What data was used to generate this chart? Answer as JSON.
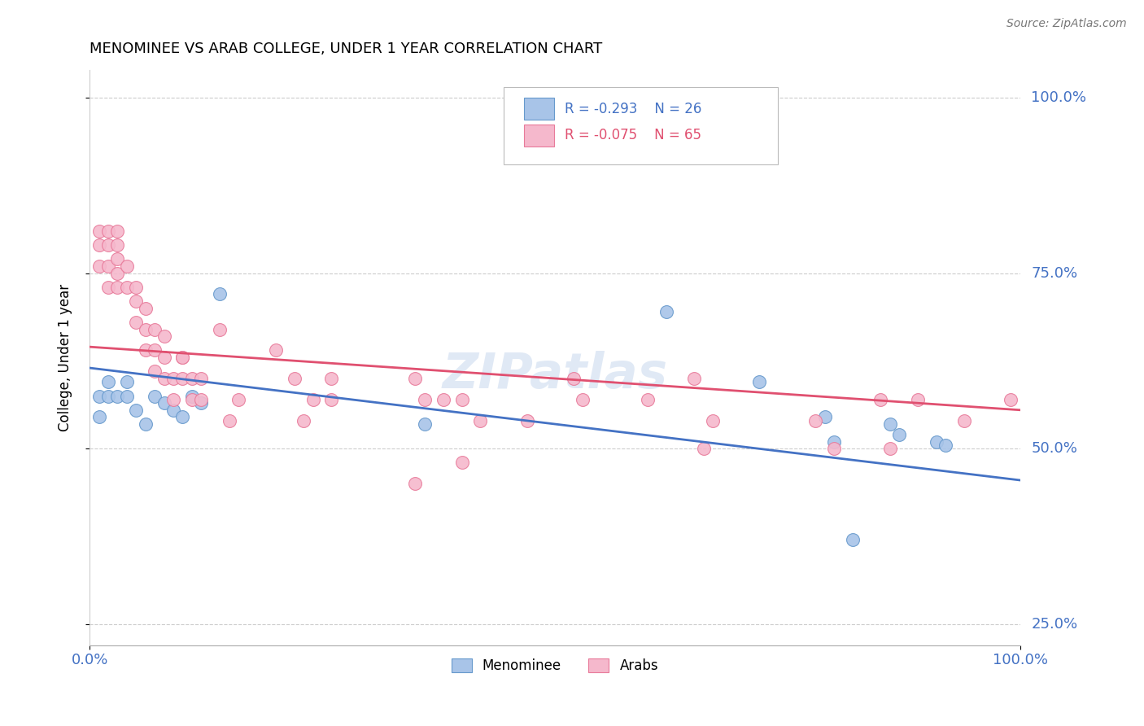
{
  "title": "MENOMINEE VS ARAB COLLEGE, UNDER 1 YEAR CORRELATION CHART",
  "source": "Source: ZipAtlas.com",
  "ylabel": "College, Under 1 year",
  "blue_label": "Menominee",
  "pink_label": "Arabs",
  "blue_R": "-0.293",
  "blue_N": "26",
  "pink_R": "-0.075",
  "pink_N": "65",
  "blue_scatter_color": "#a8c4e8",
  "blue_scatter_edge": "#6699cc",
  "pink_scatter_color": "#f5b8cc",
  "pink_scatter_edge": "#e87a9a",
  "blue_line_color": "#4472c4",
  "pink_line_color": "#e05070",
  "watermark": "ZIPatlas",
  "blue_x": [
    0.01,
    0.02,
    0.02,
    0.03,
    0.04,
    0.04,
    0.05,
    0.06,
    0.07,
    0.08,
    0.09,
    0.1,
    0.11,
    0.12,
    0.14,
    0.36,
    0.62,
    0.72,
    0.79,
    0.8,
    0.82,
    0.86,
    0.87,
    0.91,
    0.92,
    0.01
  ],
  "blue_y": [
    0.575,
    0.575,
    0.595,
    0.575,
    0.575,
    0.595,
    0.555,
    0.535,
    0.575,
    0.565,
    0.555,
    0.545,
    0.575,
    0.565,
    0.72,
    0.535,
    0.695,
    0.595,
    0.545,
    0.51,
    0.37,
    0.535,
    0.52,
    0.51,
    0.505,
    0.545
  ],
  "pink_x": [
    0.01,
    0.01,
    0.01,
    0.02,
    0.02,
    0.02,
    0.02,
    0.03,
    0.03,
    0.03,
    0.03,
    0.03,
    0.04,
    0.04,
    0.05,
    0.05,
    0.05,
    0.06,
    0.06,
    0.06,
    0.07,
    0.07,
    0.07,
    0.08,
    0.08,
    0.08,
    0.09,
    0.09,
    0.1,
    0.1,
    0.1,
    0.11,
    0.11,
    0.12,
    0.12,
    0.14,
    0.15,
    0.16,
    0.2,
    0.22,
    0.23,
    0.24,
    0.26,
    0.26,
    0.35,
    0.36,
    0.38,
    0.4,
    0.42,
    0.47,
    0.52,
    0.53,
    0.6,
    0.65,
    0.66,
    0.67,
    0.78,
    0.8,
    0.85,
    0.86,
    0.89,
    0.94,
    0.99,
    0.35,
    0.4
  ],
  "pink_y": [
    0.76,
    0.79,
    0.81,
    0.73,
    0.76,
    0.79,
    0.81,
    0.73,
    0.75,
    0.77,
    0.79,
    0.81,
    0.73,
    0.76,
    0.68,
    0.71,
    0.73,
    0.64,
    0.67,
    0.7,
    0.61,
    0.64,
    0.67,
    0.6,
    0.63,
    0.66,
    0.57,
    0.6,
    0.63,
    0.6,
    0.63,
    0.57,
    0.6,
    0.57,
    0.6,
    0.67,
    0.54,
    0.57,
    0.64,
    0.6,
    0.54,
    0.57,
    0.57,
    0.6,
    0.6,
    0.57,
    0.57,
    0.57,
    0.54,
    0.54,
    0.6,
    0.57,
    0.57,
    0.6,
    0.5,
    0.54,
    0.54,
    0.5,
    0.57,
    0.5,
    0.57,
    0.54,
    0.57,
    0.45,
    0.48
  ],
  "blue_line_x0": 0.0,
  "blue_line_y0": 0.615,
  "blue_line_x1": 1.0,
  "blue_line_y1": 0.455,
  "pink_line_x0": 0.0,
  "pink_line_y0": 0.645,
  "pink_line_x1": 1.0,
  "pink_line_y1": 0.555,
  "xlim": [
    0.0,
    1.0
  ],
  "ylim": [
    0.22,
    1.04
  ],
  "yticks": [
    0.25,
    0.5,
    0.75,
    1.0
  ],
  "ytick_labels": [
    "25.0%",
    "50.0%",
    "75.0%",
    "100.0%"
  ]
}
